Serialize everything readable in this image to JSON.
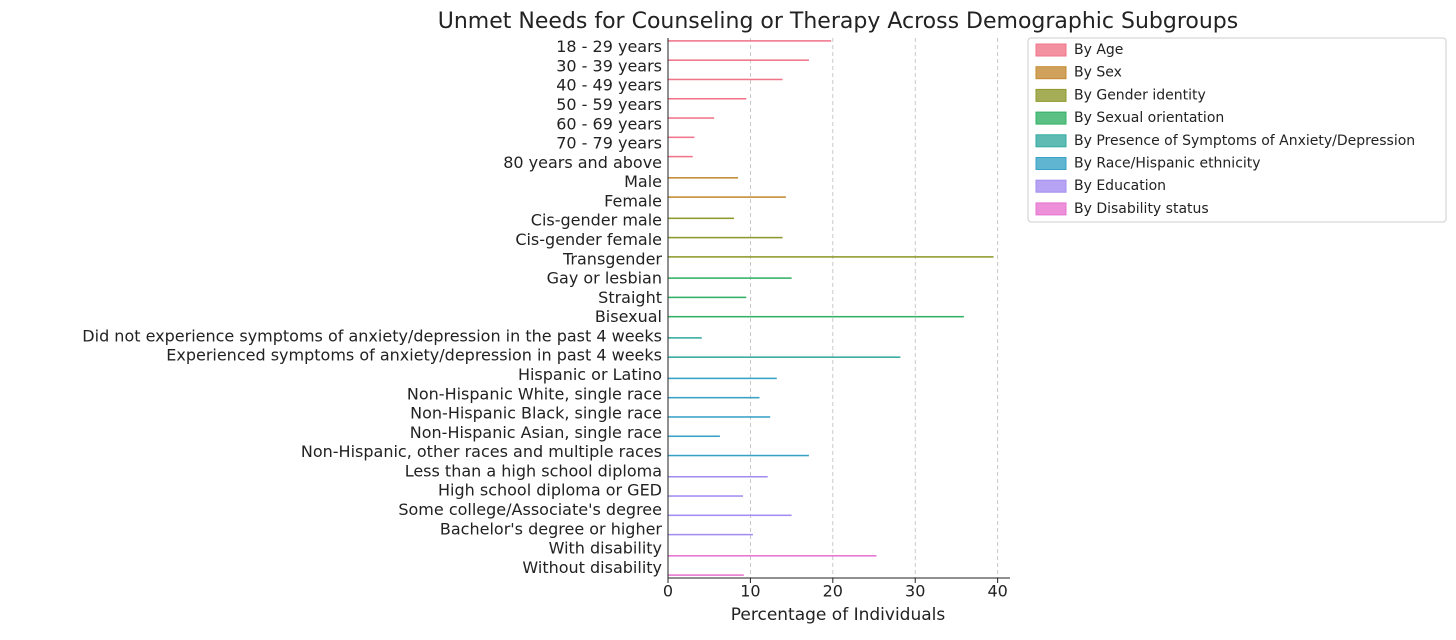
{
  "chart_data": {
    "type": "bar",
    "orientation": "horizontal",
    "title": "Unmet Needs for Counseling or Therapy Across Demographic Subgroups",
    "x_label": "Percentage of Individuals",
    "categories": [
      "18 - 29 years",
      "30 - 39 years",
      "40 - 49 years",
      "50 - 59 years",
      "60 - 69 years",
      "70 - 79 years",
      "80 years and above",
      "Male",
      "Female",
      "Cis-gender male",
      "Cis-gender female",
      "Transgender",
      "Gay or lesbian",
      "Straight",
      "Bisexual",
      "Did not experience symptoms of anxiety/depression in the past 4 weeks",
      "Experienced symptoms of anxiety/depression in past 4 weeks",
      "Hispanic or Latino",
      "Non-Hispanic White, single race",
      "Non-Hispanic Black, single race",
      "Non-Hispanic Asian, single race",
      "Non-Hispanic, other races and multiple races",
      "Less than a high school diploma",
      "High school diploma or GED",
      "Some college/Associate's degree",
      "Bachelor's degree or higher",
      "With disability",
      "Without disability"
    ],
    "series": [
      {
        "name": "By Age",
        "color": "#f0758a",
        "values": [
          19.8,
          17.1,
          13.9,
          9.5,
          5.6,
          3.2,
          3.0,
          null,
          null,
          null,
          null,
          null,
          null,
          null,
          null,
          null,
          null,
          null,
          null,
          null,
          null,
          null,
          null,
          null,
          null,
          null,
          null,
          null
        ]
      },
      {
        "name": "By Sex",
        "color": "#c48a32",
        "values": [
          null,
          null,
          null,
          null,
          null,
          null,
          null,
          8.5,
          14.3,
          null,
          null,
          null,
          null,
          null,
          null,
          null,
          null,
          null,
          null,
          null,
          null,
          null,
          null,
          null,
          null,
          null,
          null,
          null
        ]
      },
      {
        "name": "By Gender identity",
        "color": "#8e9a2c",
        "values": [
          null,
          null,
          null,
          null,
          null,
          null,
          null,
          null,
          null,
          8.0,
          13.9,
          39.5,
          null,
          null,
          null,
          null,
          null,
          null,
          null,
          null,
          null,
          null,
          null,
          null,
          null,
          null,
          null,
          null
        ]
      },
      {
        "name": "By Sexual orientation",
        "color": "#32b064",
        "values": [
          null,
          null,
          null,
          null,
          null,
          null,
          null,
          null,
          null,
          null,
          null,
          null,
          15.0,
          9.5,
          35.9,
          null,
          null,
          null,
          null,
          null,
          null,
          null,
          null,
          null,
          null,
          null,
          null,
          null
        ]
      },
      {
        "name": "By Presence of Symptoms of Anxiety/Depression",
        "color": "#34aaa0",
        "values": [
          null,
          null,
          null,
          null,
          null,
          null,
          null,
          null,
          null,
          null,
          null,
          null,
          null,
          null,
          null,
          4.1,
          28.2,
          null,
          null,
          null,
          null,
          null,
          null,
          null,
          null,
          null,
          null,
          null
        ]
      },
      {
        "name": "By Race/Hispanic ethnicity",
        "color": "#38a2c6",
        "values": [
          null,
          null,
          null,
          null,
          null,
          null,
          null,
          null,
          null,
          null,
          null,
          null,
          null,
          null,
          null,
          null,
          null,
          13.2,
          11.1,
          12.4,
          6.3,
          17.1,
          null,
          null,
          null,
          null,
          null,
          null
        ]
      },
      {
        "name": "By Education",
        "color": "#a48cf0",
        "values": [
          null,
          null,
          null,
          null,
          null,
          null,
          null,
          null,
          null,
          null,
          null,
          null,
          null,
          null,
          null,
          null,
          null,
          null,
          null,
          null,
          null,
          null,
          12.1,
          9.1,
          15.0,
          10.3,
          null,
          null
        ]
      },
      {
        "name": "By Disability status",
        "color": "#e874cf",
        "values": [
          null,
          null,
          null,
          null,
          null,
          null,
          null,
          null,
          null,
          null,
          null,
          null,
          null,
          null,
          null,
          null,
          null,
          null,
          null,
          null,
          null,
          null,
          null,
          null,
          null,
          null,
          25.3,
          9.2
        ]
      }
    ],
    "xlim": [
      0,
      41.5
    ],
    "xticks": [
      0,
      10,
      20,
      30,
      40
    ],
    "grid": true,
    "legend_position": "outside upper right"
  }
}
